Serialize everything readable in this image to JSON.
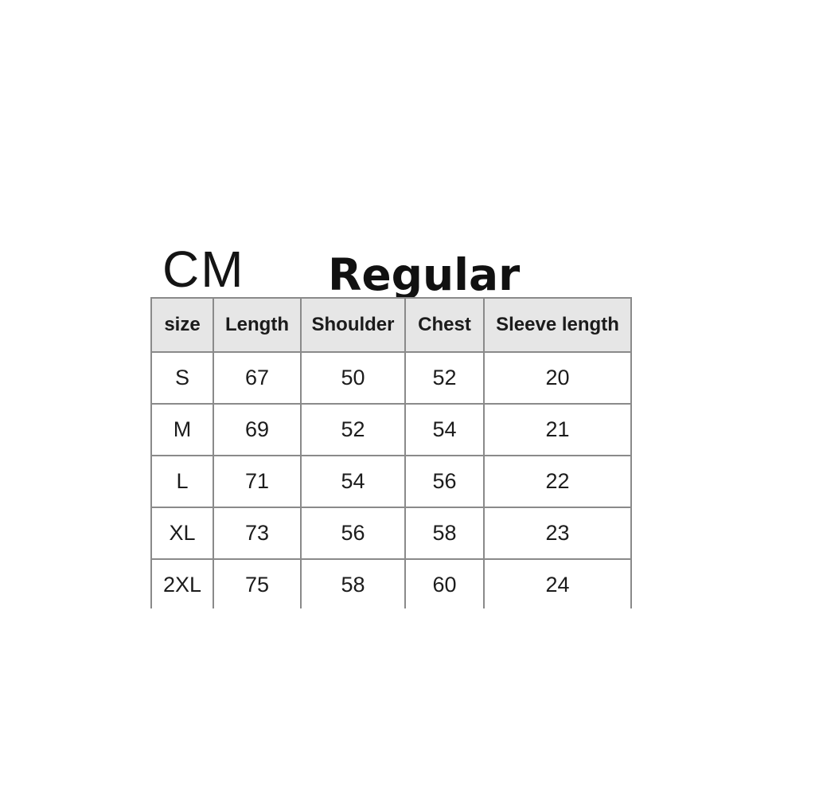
{
  "title": {
    "unit": "CM",
    "fit": "Regular"
  },
  "chart_data": {
    "type": "table",
    "title": "CM Regular",
    "unit": "CM",
    "fit_label": "Regular",
    "columns": [
      "size",
      "Length",
      "Shoulder",
      "Chest",
      "Sleeve length"
    ],
    "rows": [
      [
        "S",
        "67",
        "50",
        "52",
        "20"
      ],
      [
        "M",
        "69",
        "52",
        "54",
        "21"
      ],
      [
        "L",
        "71",
        "54",
        "56",
        "22"
      ],
      [
        "XL",
        "73",
        "56",
        "58",
        "23"
      ],
      [
        "2XL",
        "75",
        "58",
        "60",
        "24"
      ]
    ],
    "layout_notes": "header row shaded gray; table bottom edge cropped out of frame"
  },
  "colors": {
    "background": "#ffffff",
    "header_bg": "#e6e6e6",
    "border": "#8a8a8a",
    "text": "#1c1c1c"
  }
}
